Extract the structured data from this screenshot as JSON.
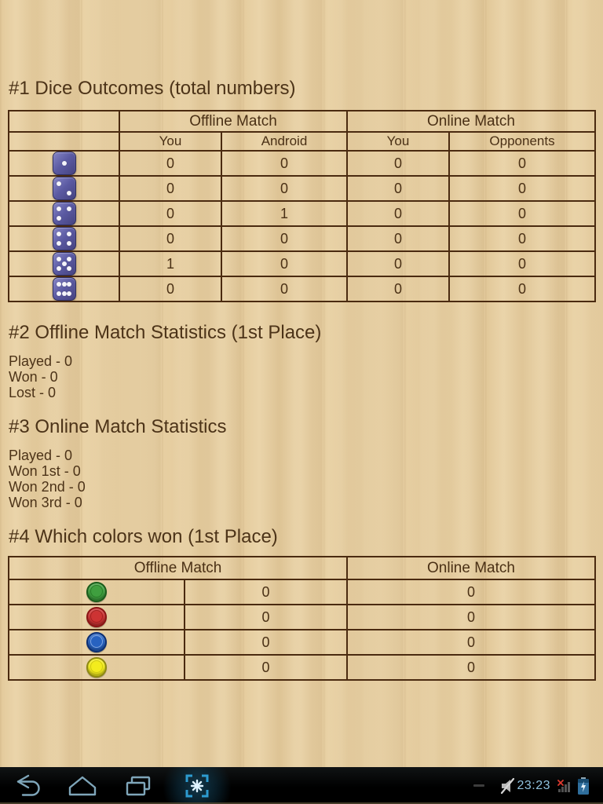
{
  "sections": {
    "dice": {
      "title": "#1 Dice Outcomes (total numbers)",
      "table": {
        "group_headers": [
          "Offline Match",
          "Online Match"
        ],
        "col_headers": [
          "You",
          "Android",
          "You",
          "Opponents"
        ],
        "rows": [
          {
            "die": 1,
            "values": [
              "0",
              "0",
              "0",
              "0"
            ]
          },
          {
            "die": 2,
            "values": [
              "0",
              "0",
              "0",
              "0"
            ]
          },
          {
            "die": 3,
            "values": [
              "0",
              "1",
              "0",
              "0"
            ]
          },
          {
            "die": 4,
            "values": [
              "0",
              "0",
              "0",
              "0"
            ]
          },
          {
            "die": 5,
            "values": [
              "1",
              "0",
              "0",
              "0"
            ]
          },
          {
            "die": 6,
            "values": [
              "0",
              "0",
              "0",
              "0"
            ]
          }
        ]
      }
    },
    "offline_stats": {
      "title": "#2 Offline Match Statistics (1st Place)",
      "lines": [
        "Played - 0",
        "Won - 0",
        "Lost - 0"
      ]
    },
    "online_stats": {
      "title": "#3 Online Match Statistics",
      "lines": [
        "Played - 0",
        "Won 1st - 0",
        "Won 2nd - 0",
        "Won 3rd - 0"
      ]
    },
    "colors_won": {
      "title": "#4 Which colors won (1st Place)",
      "table": {
        "group_headers": [
          "Offline Match",
          "Online Match"
        ],
        "rows": [
          {
            "color": "green",
            "offline": "0",
            "online": "0"
          },
          {
            "color": "red",
            "offline": "0",
            "online": "0"
          },
          {
            "color": "blue",
            "offline": "0",
            "online": "0"
          },
          {
            "color": "yellow",
            "offline": "0",
            "online": "0"
          }
        ]
      }
    }
  },
  "token_colors": {
    "green": {
      "fill": "#3f9f3f",
      "rim": "#1a5c1a",
      "inner": "#2a7d2a"
    },
    "red": {
      "fill": "#cd3333",
      "rim": "#8b1414",
      "inner": "#a32222"
    },
    "blue": {
      "fill": "#2762c0",
      "rim": "#0c2f73",
      "inner": "#7ea4de"
    },
    "yellow": {
      "fill": "#f3ec1d",
      "rim": "#8f8a10",
      "inner": "#cfc816"
    }
  },
  "navbar": {
    "time": "23:23",
    "icon_names": [
      "back-icon",
      "home-icon",
      "recent-apps-icon",
      "screenshot-capture-icon",
      "notification-dash-icon",
      "mute-icon",
      "no-signal-icon",
      "battery-charging-icon"
    ]
  },
  "theme": {
    "text_brown": "#4c3318",
    "border_brown": "#4a2a10",
    "wood_base": "#e8d0a2",
    "dice_purple": "#5b5aa2",
    "time_blue": "#8fc1dd",
    "nav_icon_blue": "#7fa6ba",
    "screenshot_blue": "#2d9bd0"
  }
}
